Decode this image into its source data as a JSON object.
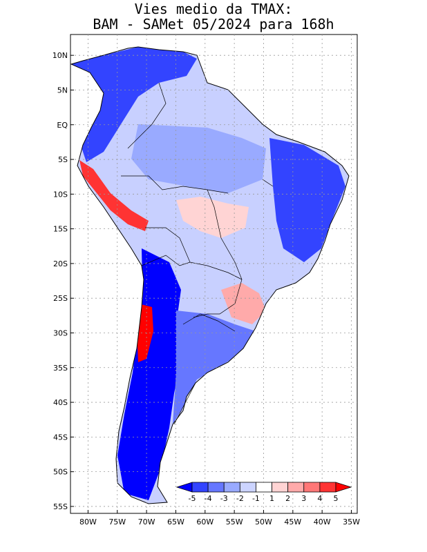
{
  "title": {
    "line1": "Vies medio da TMAX:",
    "line2": "BAM - SAMet 05/2024  para 168h"
  },
  "axes": {
    "lat_labels": [
      "10N",
      "5N",
      "EQ",
      "5S",
      "10S",
      "15S",
      "20S",
      "25S",
      "30S",
      "35S",
      "40S",
      "45S",
      "50S",
      "55S"
    ],
    "lat_values": [
      10,
      5,
      0,
      -5,
      -10,
      -15,
      -20,
      -25,
      -30,
      -35,
      -40,
      -45,
      -50,
      -55
    ],
    "lon_labels": [
      "80W",
      "75W",
      "70W",
      "65W",
      "60W",
      "55W",
      "50W",
      "45W",
      "40W",
      "35W"
    ],
    "lon_values": [
      -80,
      -75,
      -70,
      -65,
      -60,
      -55,
      -50,
      -45,
      -40,
      -35
    ],
    "lat_range": [
      -56,
      13
    ],
    "lon_range": [
      -83,
      -34
    ]
  },
  "colorbar": {
    "labels": [
      "-5",
      "-4",
      "-3",
      "-2",
      "-1",
      "1",
      "2",
      "3",
      "4",
      "5"
    ],
    "colors": [
      "#0000ff",
      "#3344ff",
      "#6677ff",
      "#99aaff",
      "#ccd4ff",
      "#ffffff",
      "#ffd4d4",
      "#ffaaaa",
      "#ff7777",
      "#ff3333",
      "#ff0000"
    ]
  },
  "map": {
    "land_color": "#c8d0ff",
    "grid_color": "#999999"
  }
}
